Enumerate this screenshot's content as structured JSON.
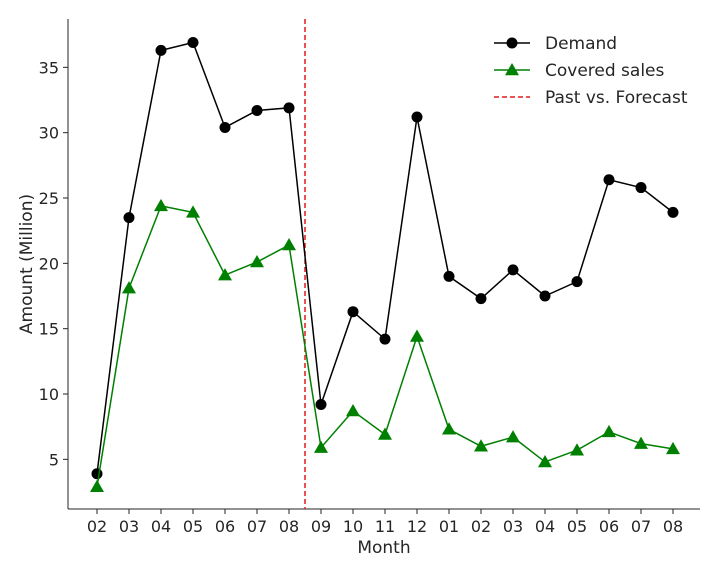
{
  "chart_data": {
    "type": "line",
    "title": "",
    "xlabel": "Month",
    "ylabel": "Amount (Million)",
    "categories": [
      "02",
      "03",
      "04",
      "05",
      "06",
      "07",
      "08",
      "09",
      "10",
      "11",
      "12",
      "01",
      "02",
      "03",
      "04",
      "05",
      "06",
      "07",
      "08"
    ],
    "ylim": [
      1.2,
      38.7
    ],
    "yticks": [
      5,
      10,
      15,
      20,
      25,
      30,
      35
    ],
    "grid": false,
    "legend_position": "top-right",
    "series": [
      {
        "name": "Demand",
        "color": "#000000",
        "marker": "circle",
        "values": [
          3.9,
          23.5,
          36.3,
          36.9,
          30.4,
          31.7,
          31.9,
          9.2,
          16.3,
          14.2,
          31.2,
          19.0,
          17.3,
          19.5,
          17.5,
          18.6,
          26.4,
          25.8,
          23.9
        ]
      },
      {
        "name": "Covered sales",
        "color": "#008000",
        "marker": "triangle",
        "values": [
          2.9,
          18.1,
          24.4,
          23.9,
          19.1,
          20.1,
          21.4,
          5.9,
          8.7,
          6.9,
          14.4,
          7.3,
          6.0,
          6.7,
          4.8,
          5.7,
          7.1,
          6.2,
          5.8
        ]
      }
    ],
    "reference_line": {
      "name": "Past vs. Forecast",
      "color": "#e41a1c",
      "style": "dashed",
      "x_between": [
        "08",
        "09"
      ]
    }
  }
}
